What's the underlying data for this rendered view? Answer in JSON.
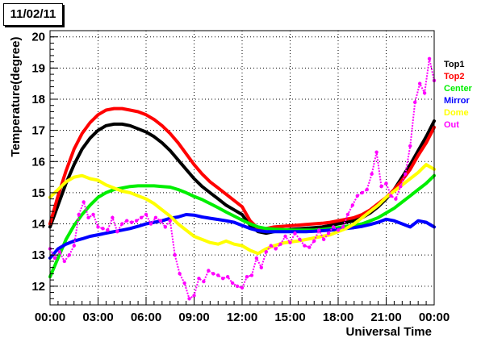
{
  "chart_data": {
    "type": "scatter",
    "title": "11/02/11",
    "xlabel": "Universal Time",
    "ylabel": "Temperature(degree)",
    "xlim": [
      0,
      24
    ],
    "ylim": [
      11.4,
      20.2
    ],
    "x_ticks": [
      {
        "v": 0,
        "label": "00:00"
      },
      {
        "v": 3,
        "label": "03:00"
      },
      {
        "v": 6,
        "label": "06:00"
      },
      {
        "v": 9,
        "label": "09:00"
      },
      {
        "v": 12,
        "label": "12:00"
      },
      {
        "v": 15,
        "label": "15:00"
      },
      {
        "v": 18,
        "label": "18:00"
      },
      {
        "v": 21,
        "label": "21:00"
      },
      {
        "v": 24,
        "label": "00:00"
      }
    ],
    "y_ticks": [
      12,
      13,
      14,
      15,
      16,
      17,
      18,
      19,
      20
    ],
    "grid": true,
    "legend_position": "right",
    "series": [
      {
        "name": "Top1",
        "color": "#000000",
        "x": [
          0,
          0.5,
          1,
          1.5,
          2,
          2.5,
          3,
          3.5,
          4,
          4.5,
          5,
          5.5,
          6,
          6.5,
          7,
          7.5,
          8,
          8.5,
          9,
          9.5,
          10,
          10.5,
          11,
          11.5,
          12,
          12.5,
          13,
          13.5,
          14,
          14.5,
          15,
          15.5,
          16,
          16.5,
          17,
          17.5,
          18,
          18.5,
          19,
          19.5,
          20,
          20.5,
          21,
          21.5,
          22,
          22.5,
          23,
          23.5,
          24
        ],
        "y": [
          13.9,
          14.6,
          15.3,
          15.9,
          16.4,
          16.75,
          17.0,
          17.15,
          17.2,
          17.2,
          17.15,
          17.05,
          16.95,
          16.8,
          16.6,
          16.35,
          16.05,
          15.75,
          15.45,
          15.2,
          15.0,
          14.8,
          14.6,
          14.45,
          14.3,
          13.95,
          13.75,
          13.7,
          13.75,
          13.8,
          13.82,
          13.84,
          13.86,
          13.88,
          13.9,
          13.95,
          14.0,
          14.05,
          14.1,
          14.2,
          14.35,
          14.55,
          14.8,
          15.1,
          15.5,
          15.9,
          16.35,
          16.8,
          17.3
        ]
      },
      {
        "name": "Top2",
        "color": "#ff0000",
        "x": [
          0,
          0.5,
          1,
          1.5,
          2,
          2.5,
          3,
          3.5,
          4,
          4.5,
          5,
          5.5,
          6,
          6.5,
          7,
          7.5,
          8,
          8.5,
          9,
          9.5,
          10,
          10.5,
          11,
          11.5,
          12,
          12.5,
          13,
          13.5,
          14,
          14.5,
          15,
          15.5,
          16,
          16.5,
          17,
          17.5,
          18,
          18.5,
          19,
          19.5,
          20,
          20.5,
          21,
          21.5,
          22,
          22.5,
          23,
          23.5,
          24
        ],
        "y": [
          14.0,
          14.9,
          15.7,
          16.4,
          16.9,
          17.25,
          17.5,
          17.65,
          17.7,
          17.7,
          17.65,
          17.6,
          17.5,
          17.35,
          17.15,
          16.9,
          16.6,
          16.25,
          15.9,
          15.6,
          15.35,
          15.15,
          14.95,
          14.75,
          14.55,
          14.1,
          13.85,
          13.85,
          13.9,
          13.92,
          13.94,
          13.96,
          13.98,
          14.0,
          14.02,
          14.05,
          14.1,
          14.15,
          14.2,
          14.3,
          14.45,
          14.65,
          14.85,
          15.1,
          15.4,
          15.75,
          16.2,
          16.6,
          17.1
        ]
      },
      {
        "name": "Center",
        "color": "#00ee00",
        "x": [
          0,
          0.5,
          1,
          1.5,
          2,
          2.5,
          3,
          3.5,
          4,
          4.5,
          5,
          5.5,
          6,
          6.5,
          7,
          7.5,
          8,
          8.5,
          9,
          9.5,
          10,
          10.5,
          11,
          11.5,
          12,
          12.5,
          13,
          13.5,
          14,
          14.5,
          15,
          15.5,
          16,
          16.5,
          17,
          17.5,
          18,
          18.5,
          19,
          19.5,
          20,
          20.5,
          21,
          21.5,
          22,
          22.5,
          23,
          23.5,
          24
        ],
        "y": [
          12.3,
          12.9,
          13.5,
          13.95,
          14.3,
          14.6,
          14.85,
          15.0,
          15.1,
          15.15,
          15.2,
          15.22,
          15.22,
          15.22,
          15.2,
          15.18,
          15.1,
          15.0,
          14.88,
          14.78,
          14.65,
          14.52,
          14.38,
          14.25,
          14.12,
          14.0,
          13.9,
          13.85,
          13.83,
          13.82,
          13.8,
          13.8,
          13.8,
          13.8,
          13.82,
          13.85,
          13.88,
          13.92,
          13.95,
          14.0,
          14.1,
          14.2,
          14.35,
          14.5,
          14.7,
          14.9,
          15.1,
          15.3,
          15.55
        ]
      },
      {
        "name": "Mirror",
        "color": "#0000ff",
        "x": [
          0,
          0.5,
          1,
          1.5,
          2,
          2.5,
          3,
          3.5,
          4,
          4.5,
          5,
          5.5,
          6,
          6.5,
          7,
          7.5,
          8,
          8.5,
          9,
          9.5,
          10,
          10.5,
          11,
          11.5,
          12,
          12.5,
          13,
          13.5,
          14,
          14.5,
          15,
          15.5,
          16,
          16.5,
          17,
          17.5,
          18,
          18.5,
          19,
          19.5,
          20,
          20.5,
          21,
          21.5,
          22,
          22.5,
          23,
          23.5,
          24
        ],
        "y": [
          12.9,
          13.2,
          13.35,
          13.45,
          13.52,
          13.6,
          13.65,
          13.7,
          13.75,
          13.8,
          13.85,
          13.92,
          14.0,
          14.05,
          14.1,
          14.18,
          14.22,
          14.3,
          14.28,
          14.22,
          14.18,
          14.14,
          14.1,
          14.05,
          13.95,
          13.85,
          13.78,
          13.75,
          13.75,
          13.75,
          13.75,
          13.75,
          13.75,
          13.76,
          13.78,
          13.8,
          13.82,
          13.85,
          13.88,
          13.92,
          13.98,
          14.05,
          14.15,
          14.1,
          14.0,
          13.9,
          14.1,
          14.05,
          13.9
        ]
      },
      {
        "name": "Dome",
        "color": "#ffff00",
        "x": [
          0,
          0.5,
          1,
          1.5,
          2,
          2.5,
          3,
          3.5,
          4,
          4.5,
          5,
          5.5,
          6,
          6.5,
          7,
          7.5,
          8,
          8.5,
          9,
          9.5,
          10,
          10.5,
          11,
          11.5,
          12,
          12.5,
          13,
          13.5,
          14,
          14.5,
          15,
          15.5,
          16,
          16.5,
          17,
          17.5,
          18,
          18.5,
          19,
          19.5,
          20,
          20.5,
          21,
          21.5,
          22,
          22.5,
          23,
          23.5,
          24
        ],
        "y": [
          14.85,
          15.1,
          15.35,
          15.5,
          15.55,
          15.45,
          15.4,
          15.25,
          15.15,
          15.05,
          15.0,
          14.9,
          14.8,
          14.65,
          14.45,
          14.25,
          14.0,
          13.8,
          13.6,
          13.5,
          13.4,
          13.35,
          13.45,
          13.35,
          13.3,
          13.15,
          13.05,
          13.2,
          13.3,
          13.38,
          13.42,
          13.45,
          13.5,
          13.55,
          13.6,
          13.65,
          13.75,
          13.85,
          14.0,
          14.2,
          14.4,
          14.6,
          14.85,
          15.05,
          15.25,
          15.45,
          15.65,
          15.9,
          15.75
        ]
      },
      {
        "name": "Out",
        "color": "#ff00ff",
        "x": [
          0,
          0.3,
          0.6,
          0.9,
          1.2,
          1.5,
          1.8,
          2.1,
          2.4,
          2.7,
          3.0,
          3.3,
          3.6,
          3.9,
          4.2,
          4.5,
          4.8,
          5.1,
          5.4,
          5.7,
          6.0,
          6.3,
          6.6,
          6.9,
          7.2,
          7.5,
          7.8,
          8.1,
          8.4,
          8.7,
          9.0,
          9.3,
          9.6,
          9.9,
          10.2,
          10.5,
          10.8,
          11.1,
          11.4,
          11.7,
          12.0,
          12.3,
          12.6,
          12.9,
          13.2,
          13.5,
          13.8,
          14.1,
          14.4,
          14.7,
          15.0,
          15.3,
          15.6,
          15.9,
          16.2,
          16.5,
          16.8,
          17.1,
          17.4,
          17.7,
          18.0,
          18.3,
          18.6,
          18.9,
          19.2,
          19.5,
          19.8,
          20.1,
          20.4,
          20.7,
          21.0,
          21.3,
          21.6,
          21.9,
          22.2,
          22.5,
          22.8,
          23.1,
          23.4,
          23.7,
          24.0
        ],
        "y": [
          13.2,
          12.9,
          13.1,
          12.8,
          13.0,
          13.3,
          14.3,
          14.7,
          14.2,
          14.3,
          13.9,
          13.85,
          13.8,
          14.2,
          13.75,
          14.0,
          14.1,
          14.05,
          14.1,
          14.2,
          14.3,
          14.0,
          14.2,
          14.1,
          13.9,
          14.1,
          13.0,
          12.4,
          12.1,
          11.6,
          11.7,
          12.25,
          12.15,
          12.5,
          12.4,
          12.35,
          12.25,
          12.3,
          12.1,
          12.0,
          11.95,
          12.3,
          12.35,
          12.9,
          12.6,
          13.1,
          13.3,
          13.2,
          13.35,
          13.6,
          13.4,
          13.7,
          13.5,
          13.3,
          13.25,
          13.45,
          13.8,
          13.5,
          13.7,
          13.9,
          13.8,
          13.9,
          14.3,
          14.6,
          14.9,
          15.0,
          15.1,
          15.6,
          16.3,
          15.2,
          15.3,
          14.9,
          14.8,
          15.2,
          15.6,
          16.5,
          17.9,
          18.5,
          18.2,
          19.3,
          18.6
        ]
      }
    ]
  }
}
